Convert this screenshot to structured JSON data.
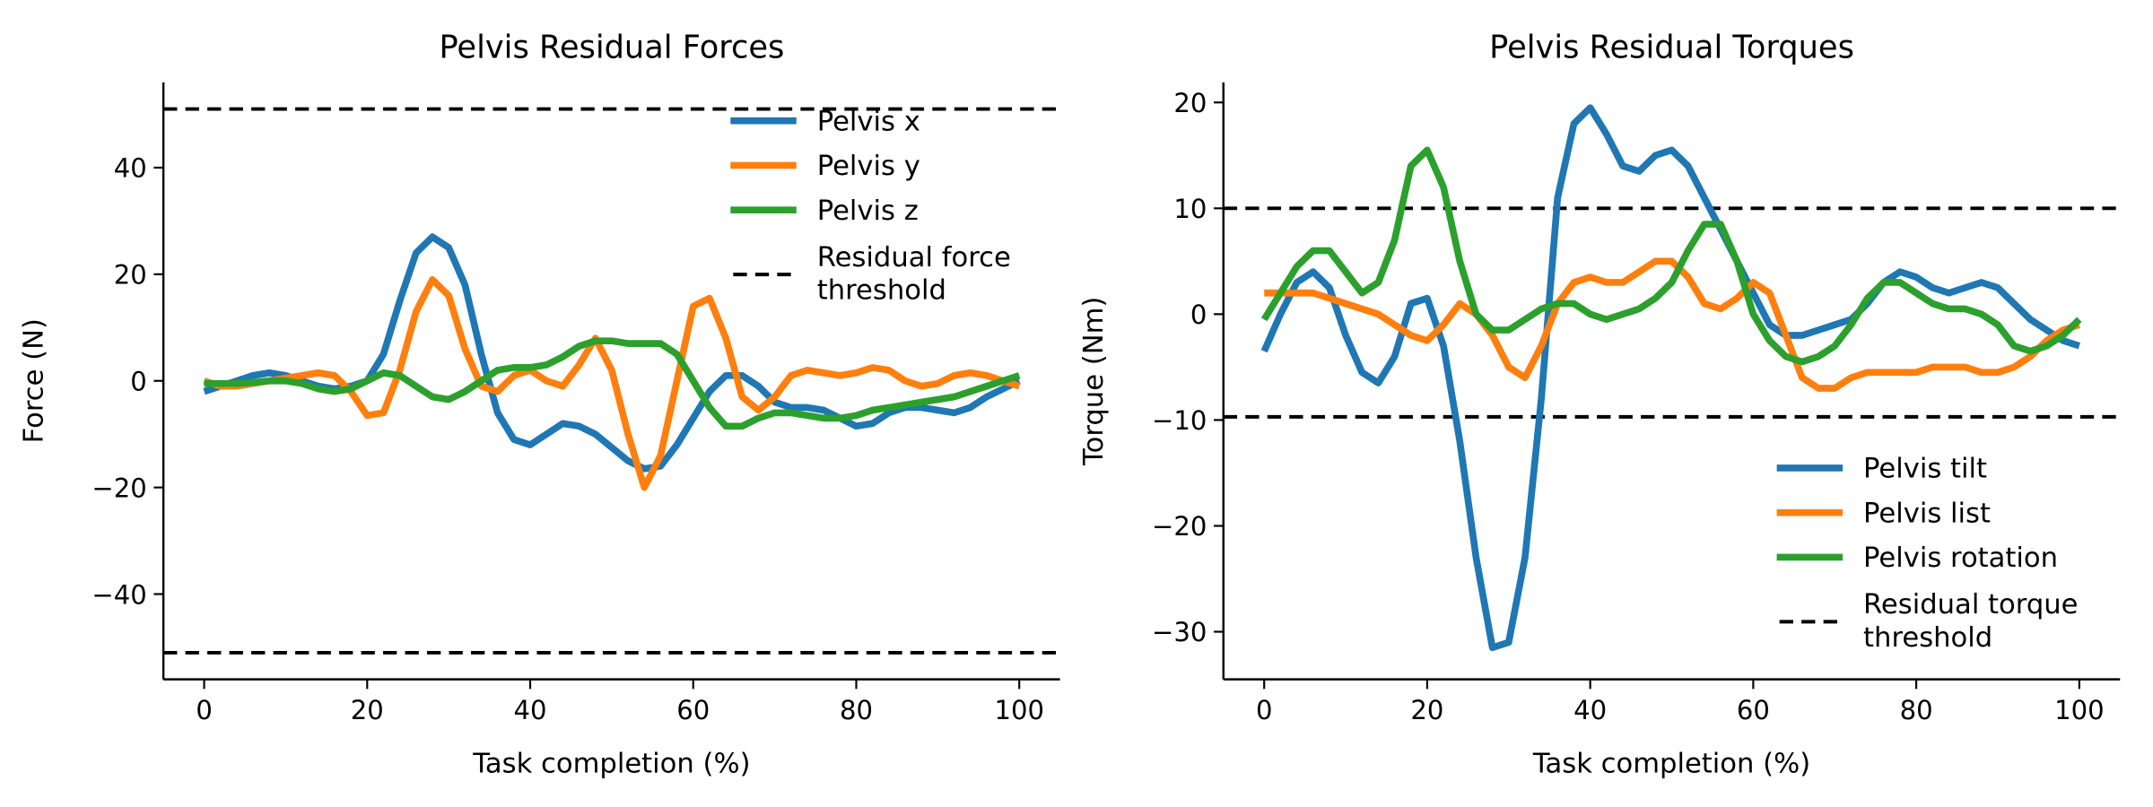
{
  "chart_data": [
    {
      "type": "line",
      "title": "Pelvis Residual Forces",
      "xlabel": "Task completion (%)",
      "ylabel": "Force (N)",
      "x": [
        0,
        2,
        4,
        6,
        8,
        10,
        12,
        14,
        16,
        18,
        20,
        22,
        24,
        26,
        28,
        30,
        32,
        34,
        36,
        38,
        40,
        42,
        44,
        46,
        48,
        50,
        52,
        54,
        56,
        58,
        60,
        62,
        64,
        66,
        68,
        70,
        72,
        74,
        76,
        78,
        80,
        82,
        84,
        86,
        88,
        90,
        92,
        94,
        96,
        98,
        100
      ],
      "series": [
        {
          "name": "Pelvis x",
          "color": "#1f77b4",
          "values": [
            -2,
            -1,
            0,
            1,
            1.5,
            1,
            0,
            -1,
            -1.5,
            -1,
            0,
            5,
            15,
            24,
            27,
            25,
            18,
            5,
            -6,
            -11,
            -12,
            -10,
            -8,
            -8.5,
            -10,
            -12.5,
            -15,
            -16.5,
            -16,
            -12,
            -7,
            -2,
            1,
            1,
            -1,
            -4,
            -5,
            -5,
            -5.5,
            -7,
            -8.5,
            -8,
            -6,
            -5,
            -5,
            -5.5,
            -6,
            -5,
            -3,
            -1.5,
            0
          ]
        },
        {
          "name": "Pelvis y",
          "color": "#ff7f0e",
          "values": [
            0,
            -1,
            -1,
            -0.5,
            0,
            0.5,
            1,
            1.5,
            1,
            -2,
            -6.5,
            -6,
            2,
            13,
            19,
            16,
            6,
            -1,
            -2,
            1,
            2,
            0,
            -1,
            3,
            8,
            2,
            -10,
            -20,
            -14,
            0,
            14,
            15.5,
            8,
            -3,
            -5.5,
            -3,
            1,
            2,
            1.5,
            1,
            1.5,
            2.5,
            2,
            0,
            -1,
            -0.5,
            1,
            1.5,
            1,
            0,
            -1
          ]
        },
        {
          "name": "Pelvis z",
          "color": "#2ca02c",
          "values": [
            -0.5,
            -0.5,
            -0.5,
            -0.3,
            0,
            0,
            -0.5,
            -1.5,
            -2,
            -1.5,
            0,
            1.5,
            1,
            -1,
            -3,
            -3.5,
            -2,
            0,
            2,
            2.5,
            2.5,
            3,
            4.5,
            6.5,
            7.5,
            7.5,
            7,
            7,
            7,
            5,
            0,
            -5,
            -8.5,
            -8.5,
            -7,
            -6,
            -6,
            -6.5,
            -7,
            -7,
            -6.5,
            -5.5,
            -5,
            -4.5,
            -4,
            -3.5,
            -3,
            -2,
            -1,
            0,
            1
          ]
        }
      ],
      "threshold": {
        "name": "Residual force\nthreshold",
        "color": "#000000",
        "values": [
          51,
          -51
        ]
      },
      "xlim": [
        -5,
        105
      ],
      "ylim": [
        -56,
        56
      ],
      "xticks": [
        0,
        20,
        40,
        60,
        80,
        100
      ],
      "yticks": [
        {
          "value": -40,
          "label": "−40"
        },
        {
          "value": -20,
          "label": "−20"
        },
        0,
        20,
        40
      ],
      "legend": "upper right"
    },
    {
      "type": "line",
      "title": "Pelvis Residual Torques",
      "xlabel": "Task completion (%)",
      "ylabel": "Torque (Nm)",
      "x": [
        0,
        2,
        4,
        6,
        8,
        10,
        12,
        14,
        16,
        18,
        20,
        22,
        24,
        26,
        28,
        30,
        32,
        34,
        36,
        38,
        40,
        42,
        44,
        46,
        48,
        50,
        52,
        54,
        56,
        58,
        60,
        62,
        64,
        66,
        68,
        70,
        72,
        74,
        76,
        78,
        80,
        82,
        84,
        86,
        88,
        90,
        92,
        94,
        96,
        98,
        100
      ],
      "series": [
        {
          "name": "Pelvis tilt",
          "color": "#1f77b4",
          "values": [
            -3.5,
            0,
            3,
            4,
            2.5,
            -2,
            -5.5,
            -6.5,
            -4,
            1,
            1.5,
            -3,
            -12,
            -23,
            -31.5,
            -31,
            -23,
            -8,
            11,
            18,
            19.5,
            17,
            14,
            13.5,
            15,
            15.5,
            14,
            11,
            8,
            5,
            2,
            -1,
            -2,
            -2,
            -1.5,
            -1,
            -0.5,
            1,
            3,
            4,
            3.5,
            2.5,
            2,
            2.5,
            3,
            2.5,
            1,
            -0.5,
            -1.5,
            -2.5,
            -3
          ]
        },
        {
          "name": "Pelvis list",
          "color": "#ff7f0e",
          "values": [
            2,
            2,
            2,
            2,
            1.5,
            1,
            0.5,
            0,
            -1,
            -2,
            -2.5,
            -1,
            1,
            0,
            -2,
            -5,
            -6,
            -3,
            1,
            3,
            3.5,
            3,
            3,
            4,
            5,
            5,
            3.5,
            1,
            0.5,
            1.5,
            3,
            2,
            -2,
            -6,
            -7,
            -7,
            -6,
            -5.5,
            -5.5,
            -5.5,
            -5.5,
            -5,
            -5,
            -5,
            -5.5,
            -5.5,
            -5,
            -4,
            -2.5,
            -1.5,
            -1
          ]
        },
        {
          "name": "Pelvis rotation",
          "color": "#2ca02c",
          "values": [
            -0.5,
            2,
            4.5,
            6,
            6,
            4,
            2,
            3,
            7,
            14,
            15.5,
            12,
            5,
            0,
            -1.5,
            -1.5,
            -0.5,
            0.5,
            1,
            1,
            0,
            -0.5,
            0,
            0.5,
            1.5,
            3,
            6,
            8.5,
            8.5,
            5,
            0,
            -2.5,
            -4,
            -4.5,
            -4,
            -3,
            -1,
            1.5,
            3,
            3,
            2,
            1,
            0.5,
            0.5,
            0,
            -1,
            -3,
            -3.5,
            -3,
            -2,
            -0.5
          ]
        }
      ],
      "threshold": {
        "name": "Residual torque\nthreshold",
        "color": "#000000",
        "values": [
          10,
          -9.7
        ]
      },
      "xlim": [
        -5,
        105
      ],
      "ylim": [
        -34.5,
        21.9
      ],
      "xticks": [
        0,
        20,
        40,
        60,
        80,
        100
      ],
      "yticks": [
        {
          "value": -30,
          "label": "−30"
        },
        {
          "value": -20,
          "label": "−20"
        },
        {
          "value": -10,
          "label": "−10"
        },
        0,
        10,
        20
      ],
      "legend": "lower right"
    }
  ]
}
